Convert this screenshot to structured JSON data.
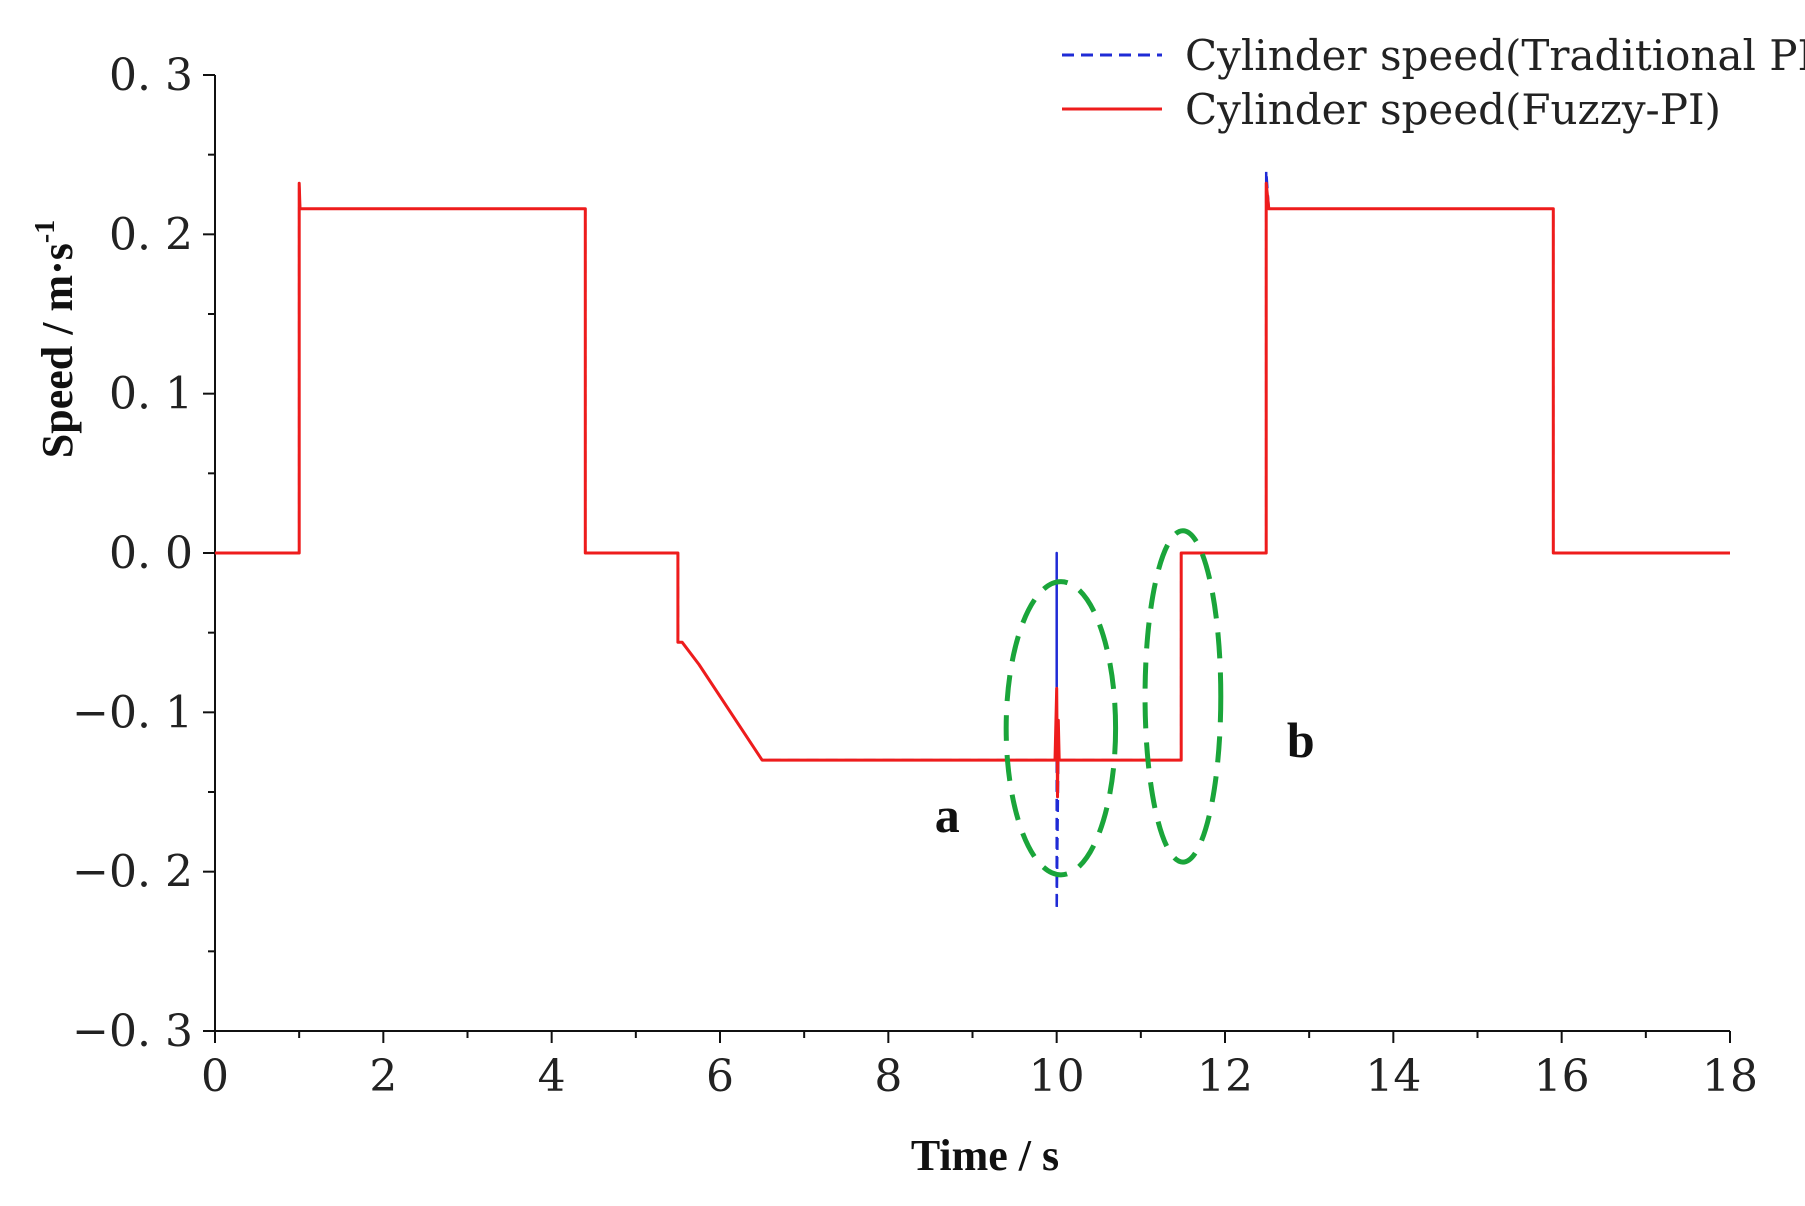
{
  "chart_data": {
    "type": "line",
    "title": "",
    "xlabel": "Time / s",
    "ylabel": {
      "main": "Speed / m·s",
      "sup": "-1"
    },
    "xlim": [
      0,
      18
    ],
    "ylim": [
      -0.3,
      0.3
    ],
    "x_ticks": [
      0,
      2,
      4,
      6,
      8,
      10,
      12,
      14,
      16,
      18
    ],
    "y_ticks": [
      0.3,
      0.2,
      0.1,
      0.0,
      -0.1,
      -0.2,
      -0.3
    ],
    "x_tick_labels": [
      "0",
      "2",
      "4",
      "6",
      "8",
      "10",
      "12",
      "14",
      "16",
      "18"
    ],
    "y_tick_labels": [
      "0. 3",
      "0. 2",
      "0. 1",
      "0. 0",
      "−0. 1",
      "−0. 2",
      "−0. 3"
    ],
    "legend_position": "top-right",
    "series": [
      {
        "name": "Cylinder speed(Traditional PI)",
        "color": "#1f2bd6",
        "style": "dashed",
        "x": [
          0,
          1.0,
          1.0,
          1.01,
          4.4,
          4.4,
          5.5,
          5.5,
          5.55,
          5.75,
          6.5,
          10.0,
          10.0,
          10.0,
          10.02,
          11.48,
          11.48,
          12.49,
          12.49,
          12.52,
          15.9,
          15.9,
          18
        ],
        "y": [
          0,
          0,
          0.232,
          0.216,
          0.216,
          0,
          0,
          -0.056,
          -0.056,
          -0.07,
          -0.13,
          -0.13,
          0.0,
          -0.224,
          -0.13,
          -0.13,
          0,
          0,
          0.24,
          0.216,
          0.216,
          0,
          0
        ]
      },
      {
        "name": "Cylinder speed(Fuzzy-PI)",
        "color": "#ee1c1c",
        "style": "solid",
        "x": [
          0,
          1.0,
          1.0,
          1.01,
          4.4,
          4.4,
          5.5,
          5.5,
          5.55,
          5.75,
          6.5,
          9.98,
          10.0,
          10.01,
          10.02,
          10.03,
          11.48,
          11.48,
          12.49,
          12.49,
          12.52,
          15.9,
          15.9,
          18
        ],
        "y": [
          0,
          0,
          0.232,
          0.216,
          0.216,
          0,
          0,
          -0.056,
          -0.056,
          -0.07,
          -0.13,
          -0.13,
          -0.085,
          -0.153,
          -0.105,
          -0.13,
          -0.13,
          0,
          0,
          0.232,
          0.216,
          0.216,
          0,
          0
        ]
      }
    ],
    "annotations": [
      {
        "label": "a",
        "x": 8.7,
        "y": -0.175,
        "ellipse": {
          "cx": 10.05,
          "cy": -0.11,
          "rx": 0.65,
          "ry": 0.092,
          "color": "#1aa53a"
        }
      },
      {
        "label": "b",
        "x": 12.9,
        "y": -0.128,
        "ellipse": {
          "cx": 11.5,
          "cy": -0.09,
          "rx": 0.45,
          "ry": 0.104,
          "color": "#1aa53a"
        }
      }
    ]
  }
}
